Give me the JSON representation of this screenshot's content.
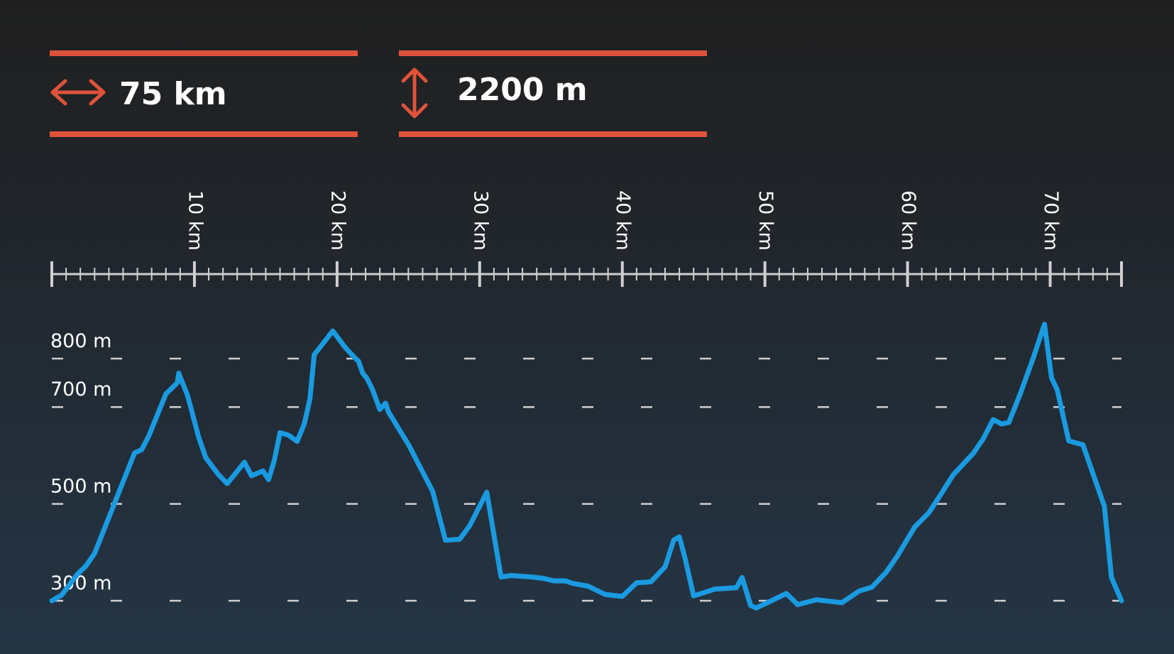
{
  "stats": {
    "distance": {
      "value": "75 km",
      "icon": "horizontal-double-arrow-icon"
    },
    "elevation_gain": {
      "value": "2200 m",
      "icon": "vertical-double-arrow-icon"
    }
  },
  "colors": {
    "accent": "#e0533a",
    "line": "#1a9ae0",
    "axis": "#cfcfcf",
    "text": "#ffffff"
  },
  "chart_data": {
    "type": "line",
    "title": "",
    "xlabel": "",
    "ylabel": "",
    "x_unit": "km",
    "y_unit": "m",
    "xlim": [
      0,
      75
    ],
    "ylim": [
      300,
      800
    ],
    "x_ticks": [
      10,
      20,
      30,
      40,
      50,
      60,
      70
    ],
    "x_tick_labels": [
      "10 km",
      "20 km",
      "30 km",
      "40 km",
      "50 km",
      "60 km",
      "70 km"
    ],
    "x_minor_step": 1,
    "y_ticks": [
      300,
      500,
      700,
      800
    ],
    "y_tick_labels": [
      "300 m",
      "500 m",
      "700 m",
      "800 m"
    ],
    "gridlines_dashed": true,
    "series": [
      {
        "x": [
          0,
          0.7,
          1.8,
          2.4,
          3.0,
          5.8,
          6.3,
          6.8,
          8.0,
          8.8,
          8.9,
          9.5,
          9.7,
          10.3,
          10.8,
          11.7,
          12.3,
          12.8,
          13.5,
          14.0,
          14.8,
          15.2,
          15.6,
          16.0,
          16.6,
          17.2,
          17.7,
          18.1,
          18.4,
          19.7,
          20.6,
          21.3,
          21.5,
          21.8,
          22.1,
          22.5,
          23.0,
          23.4,
          23.6,
          23.9,
          24.3,
          25.0,
          26.7,
          27.6,
          28.6,
          29.3,
          30.5,
          31.5,
          32.2,
          33.7,
          34.5,
          35.2,
          36.0,
          36.5,
          37.6,
          38.8,
          40.0,
          41.0,
          42.0,
          43.0,
          43.6,
          44.0,
          44.4,
          45.0,
          46.5,
          48.0,
          48.4,
          49.0,
          49.4,
          51.5,
          52.3,
          53.6,
          55.4,
          56.6,
          57.5,
          58.5,
          59.3,
          60.5,
          61.5,
          62.3,
          63.2,
          64.6,
          65.3,
          66.0,
          66.6,
          67.1,
          67.9,
          68.8,
          69.6,
          70.1,
          70.5,
          71.3,
          72.3,
          73.8,
          74.3,
          75.0
        ],
        "y": [
          300,
          312,
          355,
          372,
          398,
          605,
          612,
          640,
          727,
          750,
          770,
          725,
          704,
          637,
          595,
          560,
          542,
          560,
          586,
          558,
          568,
          550,
          590,
          647,
          642,
          629,
          665,
          717,
          808,
          857,
          822,
          800,
          795,
          770,
          759,
          735,
          695,
          708,
          690,
          676,
          656,
          623,
          526,
          425,
          427,
          455,
          524,
          349,
          352,
          349,
          346,
          341,
          341,
          336,
          330,
          313,
          309,
          337,
          339,
          370,
          425,
          432,
          388,
          310,
          324,
          327,
          348,
          290,
          285,
          315,
          292,
          302,
          296,
          320,
          328,
          359,
          393,
          452,
          482,
          518,
          560,
          604,
          634,
          674,
          665,
          668,
          727,
          800,
          871,
          760,
          735,
          630,
          622,
          495,
          348,
          300
        ]
      }
    ]
  }
}
